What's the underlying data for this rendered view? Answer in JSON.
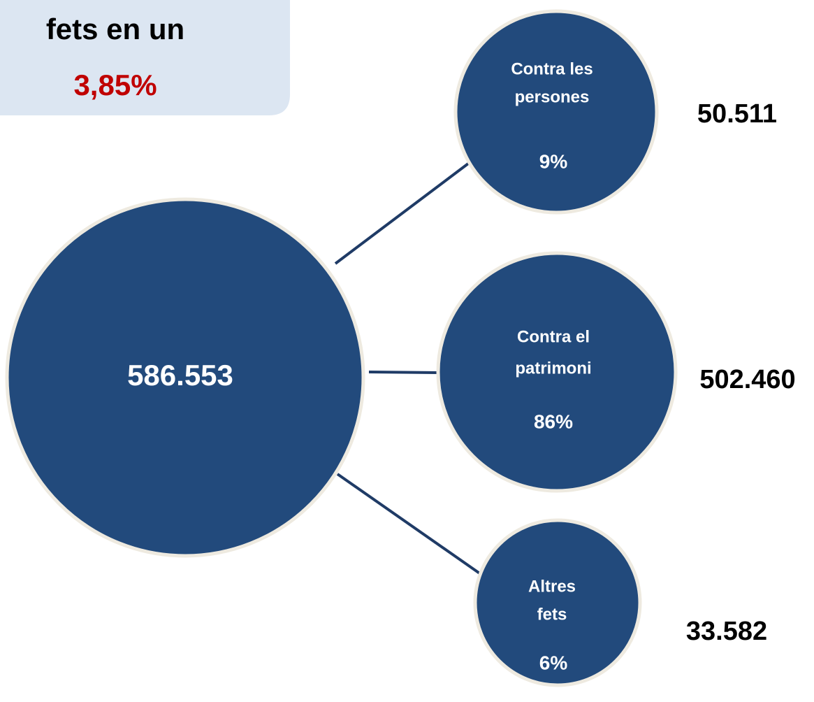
{
  "header": {
    "lines": [
      "fets en un",
      "3,85%"
    ]
  },
  "total": {
    "label": "586.553"
  },
  "nodes": [
    {
      "label_lines": [
        "Contra les",
        "persones"
      ],
      "percent": "9%",
      "count": "50.511"
    },
    {
      "label_lines": [
        "Contra el",
        "patrimoni"
      ],
      "percent": "86%",
      "count": "502.460"
    },
    {
      "label_lines": [
        "Altres",
        "fets"
      ],
      "percent": "6%",
      "count": "33.582"
    }
  ]
}
